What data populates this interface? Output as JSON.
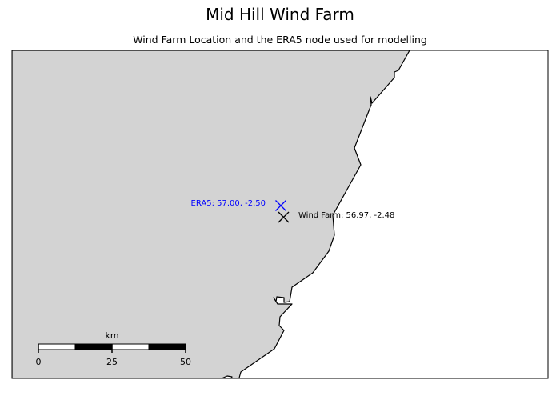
{
  "title": "Mid Hill Wind Farm",
  "subtitle": "Wind Farm Location and the ERA5 node used for modelling",
  "colors": {
    "land": "#d3d3d3",
    "sea": "#ffffff",
    "era5": "#0000ff",
    "farm": "#000000"
  },
  "markers": {
    "era5": {
      "label": "ERA5: 57.00, -2.50",
      "lat": 57.0,
      "lon": -2.5
    },
    "farm": {
      "label": "Wind Farm: 56.97, -2.48",
      "lat": 56.97,
      "lon": -2.48
    }
  },
  "scalebar": {
    "unit": "km",
    "ticks": [
      "0",
      "25",
      "50"
    ]
  }
}
